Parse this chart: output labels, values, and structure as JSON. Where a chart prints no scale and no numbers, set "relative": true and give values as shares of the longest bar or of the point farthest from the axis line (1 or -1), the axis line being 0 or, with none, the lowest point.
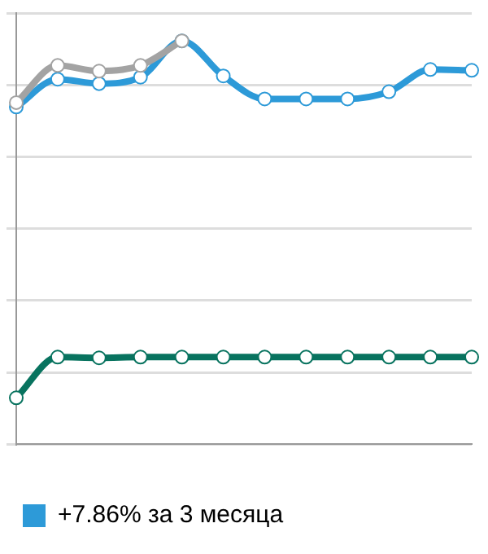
{
  "chart_data": {
    "type": "line",
    "relative": true,
    "categories": [
      null,
      null,
      null,
      null,
      null,
      null,
      null,
      null,
      null,
      null,
      null,
      null
    ],
    "series": [
      {
        "color": "#a3a3a3",
        "values": [
          0.847,
          0.939,
          0.925,
          0.939,
          1,
          null,
          null,
          null,
          null,
          null,
          null,
          null
        ]
      },
      {
        "name": "+7.86% за 3 месяца",
        "color": "#2d9ad8",
        "values": [
          0.836,
          0.905,
          0.894,
          0.91,
          1,
          0.913,
          0.856,
          0.856,
          0.856,
          0.874,
          0.929,
          0.927
        ]
      },
      {
        "color": "#08735f",
        "values": [
          0.115,
          0.216,
          0.214,
          0.216,
          0.216,
          0.216,
          0.216,
          0.216,
          0.216,
          0.216,
          0.216,
          0.216
        ]
      }
    ],
    "grid": "y",
    "legend": "bottom",
    "marker": "circle",
    "line_style": "solid"
  }
}
